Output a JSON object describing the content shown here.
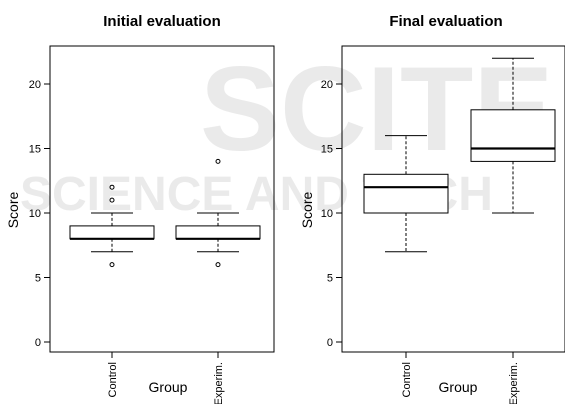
{
  "watermark": {
    "main": "SCITE",
    "sub": "SCIENCE AND TECH",
    "color": "#d9d9d9"
  },
  "chart_data": [
    {
      "type": "boxplot",
      "title": "Initial evaluation",
      "xlabel": "Group",
      "ylabel": "Score",
      "categories": [
        "Control",
        "Experim."
      ],
      "ylim": [
        0,
        23
      ],
      "yticks": [
        0,
        5,
        10,
        15,
        20
      ],
      "boxes": [
        {
          "category": "Control",
          "whisker_low": 7,
          "q1": 8,
          "median": 8,
          "q3": 9,
          "whisker_high": 10,
          "outliers": [
            6,
            11,
            12
          ]
        },
        {
          "category": "Experim.",
          "whisker_low": 7,
          "q1": 8,
          "median": 8,
          "q3": 9,
          "whisker_high": 10,
          "outliers": [
            6,
            14
          ]
        }
      ]
    },
    {
      "type": "boxplot",
      "title": "Final evaluation",
      "xlabel": "Group",
      "ylabel": "Score",
      "categories": [
        "Control",
        "Experim."
      ],
      "ylim": [
        0,
        23
      ],
      "yticks": [
        0,
        5,
        10,
        15,
        20
      ],
      "boxes": [
        {
          "category": "Control",
          "whisker_low": 7,
          "q1": 10,
          "median": 12,
          "q3": 13,
          "whisker_high": 16,
          "outliers": []
        },
        {
          "category": "Experim.",
          "whisker_low": 10,
          "q1": 14,
          "median": 15,
          "q3": 18,
          "whisker_high": 22,
          "outliers": []
        }
      ]
    }
  ]
}
